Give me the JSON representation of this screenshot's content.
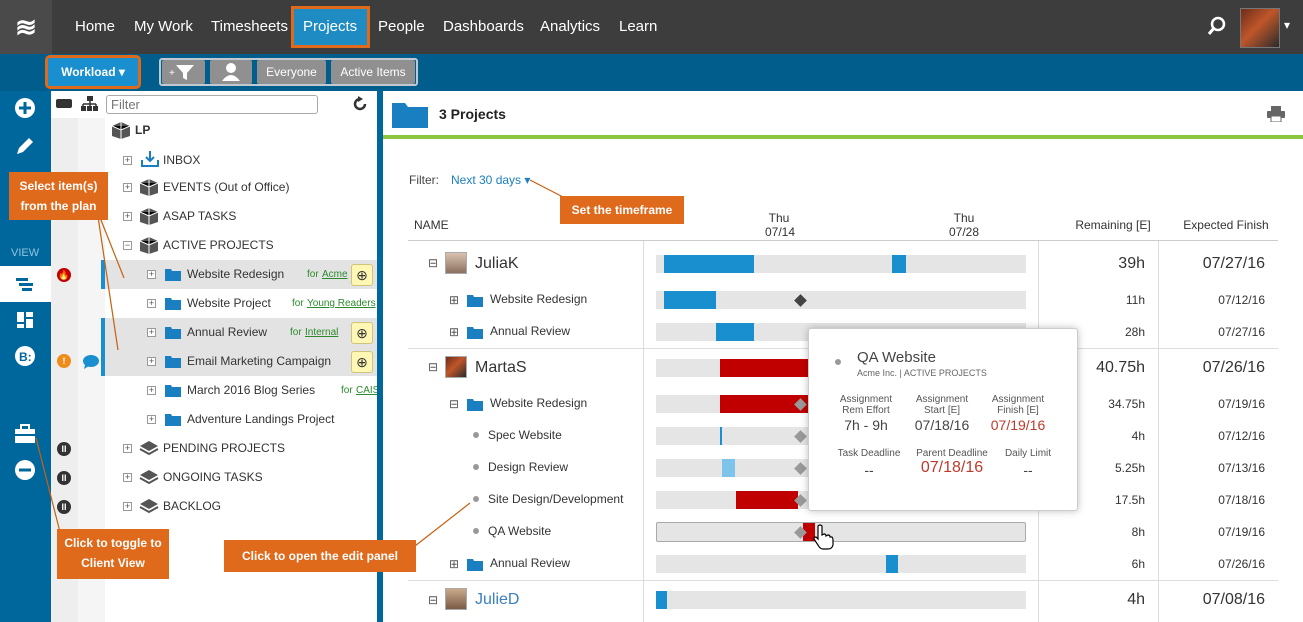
{
  "nav": {
    "logo": "≋",
    "items": [
      "Home",
      "My Work",
      "Timesheets",
      "Projects",
      "People",
      "Dashboards",
      "Analytics",
      "Learn"
    ],
    "active": "Projects",
    "avatar_caret": "▾"
  },
  "toolbar": {
    "workload_label": "Workload ▾",
    "everyone_label": "Everyone",
    "active_items_label": "Active Items",
    "filter_placeholder": "Filter"
  },
  "rail": {
    "view_label": "VIEW"
  },
  "tree": {
    "root": "LP",
    "rows": [
      {
        "label": "INBOX",
        "pm": "+"
      },
      {
        "label": "EVENTS (Out of Office)",
        "pm": "+"
      },
      {
        "label": "ASAP TASKS",
        "pm": "+"
      },
      {
        "label": "ACTIVE PROJECTS",
        "pm": "−"
      },
      {
        "label": "Website Redesign",
        "pm": "+",
        "for": "for",
        "client": "Acme"
      },
      {
        "label": "Website Project",
        "pm": "+",
        "for": "for",
        "client": "Young Readers"
      },
      {
        "label": "Annual Review",
        "pm": "+",
        "for": "for",
        "client": "Internal"
      },
      {
        "label": "Email Marketing Campaign",
        "pm": "+"
      },
      {
        "label": "March 2016 Blog Series",
        "pm": "+",
        "for": "for",
        "client": "CAIS"
      },
      {
        "label": "Adventure Landings Project",
        "pm": "+"
      },
      {
        "label": "PENDING PROJECTS",
        "pm": "+"
      },
      {
        "label": "ONGOING TASKS",
        "pm": "+"
      },
      {
        "label": "BACKLOG",
        "pm": "+"
      }
    ],
    "badge_fire": "🔥",
    "badge_alert": "!",
    "pause": "II"
  },
  "main": {
    "title": "3 Projects",
    "filter_label": "Filter:",
    "filter_value": "Next 30 days ▾",
    "col_name": "NAME",
    "date1_day": "Thu",
    "date1": "07/14",
    "date2_day": "Thu",
    "date2": "07/28",
    "col_remaining": "Remaining [E]",
    "col_expected": "Expected Finish"
  },
  "rows": [
    {
      "name": "JuliaK",
      "remaining": "39h",
      "finish": "07/27/16"
    },
    {
      "name": "Website Redesign",
      "remaining": "11h",
      "finish": "07/12/16"
    },
    {
      "name": "Annual Review",
      "remaining": "28h",
      "finish": "07/27/16"
    },
    {
      "name": "MartaS",
      "remaining": "40.75h",
      "finish": "07/26/16"
    },
    {
      "name": "Website Redesign",
      "remaining": "34.75h",
      "finish": "07/19/16"
    },
    {
      "name": "Spec Website",
      "remaining": "4h",
      "finish": "07/12/16"
    },
    {
      "name": "Design Review",
      "remaining": "5.25h",
      "finish": "07/13/16"
    },
    {
      "name": "Site Design/Development",
      "remaining": "17.5h",
      "finish": "07/18/16"
    },
    {
      "name": "QA Website",
      "remaining": "8h",
      "finish": "07/19/16"
    },
    {
      "name": "Annual Review",
      "remaining": "6h",
      "finish": "07/26/16"
    },
    {
      "name": "JulieD",
      "remaining": "4h",
      "finish": "07/08/16"
    }
  ],
  "popup": {
    "title": "QA Website",
    "subtitle": "Acme Inc. | ACTIVE PROJECTS",
    "h1": "Assignment Rem Effort",
    "v1": "7h - 9h",
    "h2": "Assignment Start [E]",
    "v2": "07/18/16",
    "h3": "Assignment Finish [E]",
    "v3": "07/19/16",
    "h4": "Task Deadline",
    "v4": "--",
    "h5": "Parent Deadline",
    "v5": "07/18/16",
    "h6": "Daily Limit",
    "v6": "--"
  },
  "callouts": {
    "select": "Select item(s) from the plan",
    "timeframe": "Set the timeframe",
    "toggle": "Click to toggle to Client View",
    "edit": "Click to open the edit panel"
  },
  "colors": {
    "accent": "#1a8fd0",
    "callout": "#e06a1c",
    "red": "#c00000",
    "green": "#8cc63f"
  }
}
